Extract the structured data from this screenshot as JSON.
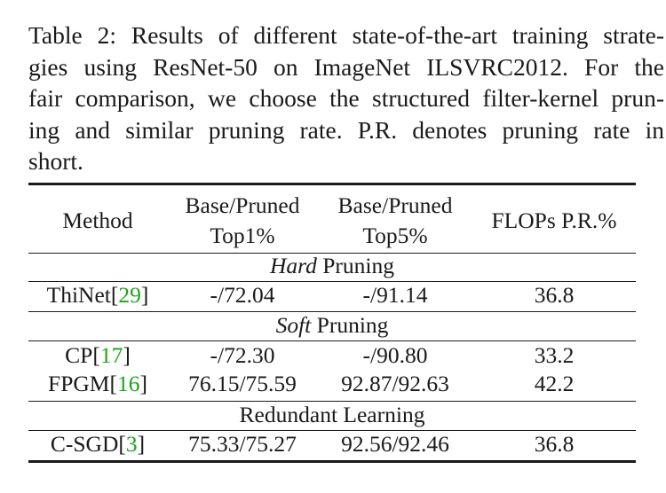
{
  "caption": {
    "lines": [
      "Table 2: Results of different state-of-the-art training strate-",
      "gies using ResNet-50 on ImageNet ILSVRC2012.  For the",
      "fair comparison, we choose the structured filter-kernel prun-",
      "ing and similar pruning rate.  P.R. denotes pruning rate in",
      "short."
    ]
  },
  "table": {
    "headers": {
      "method": "Method",
      "top1_a": "Base/Pruned",
      "top1_b": "Top1%",
      "top5_a": "Base/Pruned",
      "top5_b": "Top5%",
      "flops": "FLOPs P.R.%"
    },
    "sections": {
      "hard": {
        "em": "Hard",
        "rest": " Pruning"
      },
      "soft": {
        "em": "Soft",
        "rest": " Pruning"
      },
      "redundant": {
        "label": "Redundant Learning"
      }
    },
    "rows": {
      "thinet": {
        "name": "ThiNet",
        "ref": "29",
        "top1": "-/72.04",
        "top5": "-/91.14",
        "flops": "36.8"
      },
      "cp": {
        "name": "CP",
        "ref": "17",
        "top1": "-/72.30",
        "top5": "-/90.80",
        "flops": "33.2"
      },
      "fpgm": {
        "name": "FPGM",
        "ref": "16",
        "top1": "76.15/75.59",
        "top5": "92.87/92.63",
        "flops": "42.2"
      },
      "csgd": {
        "name": "C-SGD",
        "ref": "3",
        "top1": "75.33/75.27",
        "top5": "92.56/92.46",
        "flops": "36.8"
      }
    },
    "ref_color": "#1aa51a"
  }
}
